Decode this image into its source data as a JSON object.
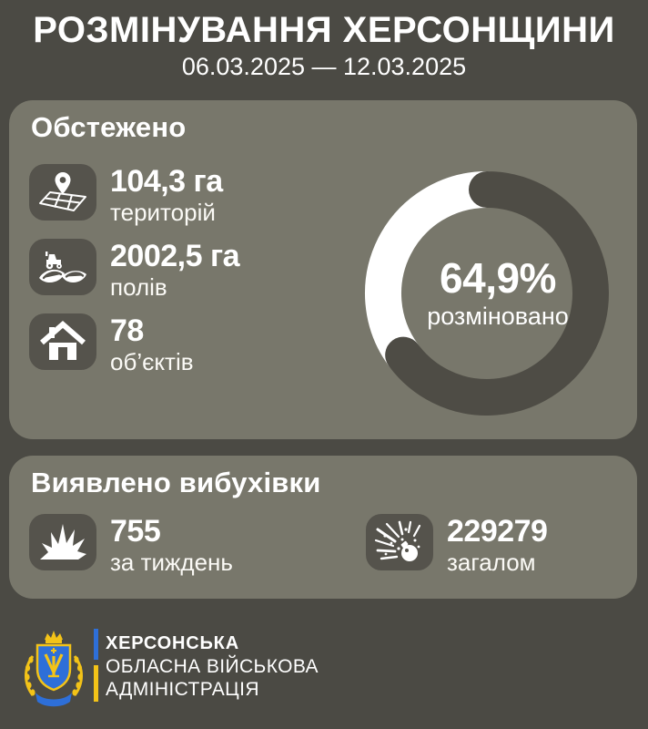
{
  "colors": {
    "background": "#4b4a44",
    "card": "#78776b",
    "tile": "#55534c",
    "donut-value": "#4e4c45",
    "donut-track": "#ffffff",
    "text": "#ffffff",
    "flag-blue": "#2e6fd8",
    "flag-yellow": "#f3c318"
  },
  "header": {
    "title": "РОЗМІНУВАННЯ ХЕРСОНЩИНИ",
    "date_range": "06.03.2025 — 12.03.2025"
  },
  "surveyed_card": {
    "title": "Обстежено",
    "stats": [
      {
        "icon": "map-pin-icon",
        "value": "104,3 га",
        "label": "територій"
      },
      {
        "icon": "tractor-field-icon",
        "value": "2002,5 га",
        "label": "полів"
      },
      {
        "icon": "house-icon",
        "value": "78",
        "label": "об’єктів"
      }
    ]
  },
  "explosives_card": {
    "title": "Виявлено вибухівки",
    "stats": [
      {
        "icon": "explosion-icon",
        "value": "755",
        "label": "за тиждень"
      },
      {
        "icon": "exploding-bomb-icon",
        "value": "229279",
        "label": "загалом"
      }
    ]
  },
  "chart_data": {
    "type": "pie",
    "subtype": "donut",
    "title": "Обстежено",
    "center_value": "64,9%",
    "center_caption": "розміновано",
    "start_angle_deg": 0,
    "direction": "clockwise",
    "legend": "none",
    "slices": [
      {
        "label": "розміновано",
        "value": 64.9,
        "color": "#4e4c45"
      },
      {
        "label": "remainder",
        "value": 35.1,
        "color": "#ffffff"
      }
    ]
  },
  "footer": {
    "emblem": "kherson-oblast-coat-of-arms",
    "org_lines": [
      "ХЕРСОНСЬКА",
      "ОБЛАСНА ВІЙСЬКОВА",
      "АДМІНІСТРАЦІЯ"
    ]
  }
}
